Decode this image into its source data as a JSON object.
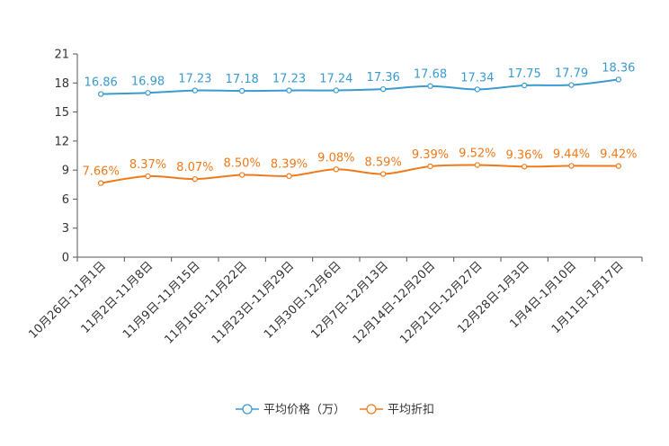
{
  "chart_data": {
    "type": "line",
    "categories": [
      "10月26日-11月1日",
      "11月2日-11月8日",
      "11月9日-11月15日",
      "11月16日-11月22日",
      "11月23日-11月29日",
      "11月30日-12月6日",
      "12月7日-12月13日",
      "12月14日-12月20日",
      "12月21日-12月27日",
      "12月28日-1月3日",
      "1月4日-1月10日",
      "1月11日-1月17日"
    ],
    "ylim": [
      0,
      21
    ],
    "yticks": [
      0,
      3,
      6,
      9,
      12,
      15,
      18,
      21
    ],
    "series": [
      {
        "name": "平均价格（万）",
        "color": "#3a9bd0",
        "values": [
          16.86,
          16.98,
          17.23,
          17.18,
          17.23,
          17.24,
          17.36,
          17.68,
          17.34,
          17.75,
          17.79,
          18.36
        ],
        "labels": [
          "16.86",
          "16.98",
          "17.23",
          "17.18",
          "17.23",
          "17.24",
          "17.36",
          "17.68",
          "17.34",
          "17.75",
          "17.79",
          "18.36"
        ]
      },
      {
        "name": "平均折扣",
        "color": "#f07a1a",
        "values": [
          7.66,
          8.37,
          8.07,
          8.5,
          8.39,
          9.08,
          8.59,
          9.39,
          9.52,
          9.36,
          9.44,
          9.42
        ],
        "labels": [
          "7.66%",
          "8.37%",
          "8.07%",
          "8.50%",
          "8.39%",
          "9.08%",
          "8.59%",
          "9.39%",
          "9.52%",
          "9.36%",
          "9.44%",
          "9.42%"
        ]
      }
    ],
    "legend_position": "bottom-center",
    "grid": false
  }
}
